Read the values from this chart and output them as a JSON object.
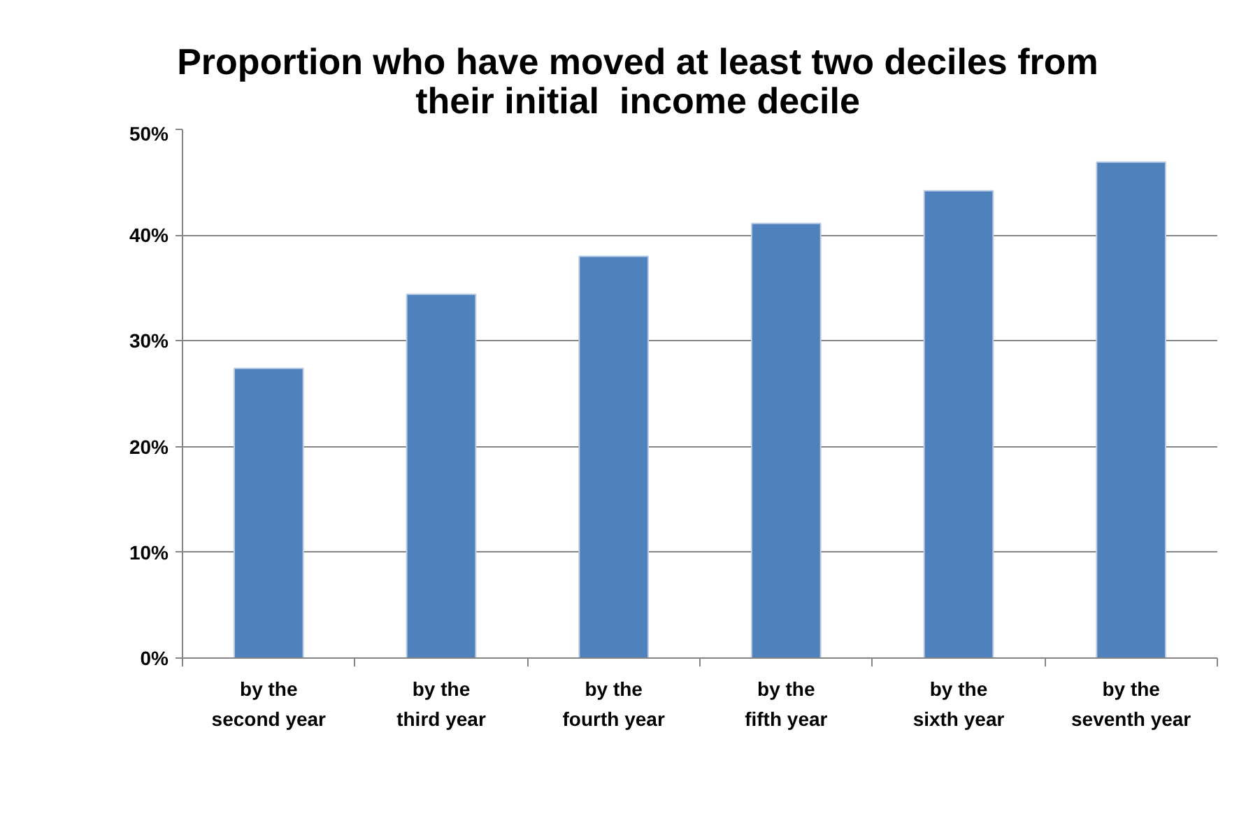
{
  "chart_data": {
    "type": "bar",
    "title": "Proportion who have moved at least two deciles from their initial  income decile",
    "categories": [
      "by the second year",
      "by the third year",
      "by the fourth year",
      "by the fifth year",
      "by the sixth year",
      "by the seventh year"
    ],
    "values": [
      27.4,
      34.4,
      38.0,
      41.1,
      44.2,
      46.9
    ],
    "color": "#4f81bd",
    "ylim": [
      0,
      50
    ],
    "yticks": [
      {
        "value": 0,
        "label": "0%"
      },
      {
        "value": 10,
        "label": "10%"
      },
      {
        "value": 20,
        "label": "20%"
      },
      {
        "value": 30,
        "label": "30%"
      },
      {
        "value": 40,
        "label": "40%"
      },
      {
        "value": 50,
        "label": "50%"
      }
    ],
    "grid": "y"
  }
}
